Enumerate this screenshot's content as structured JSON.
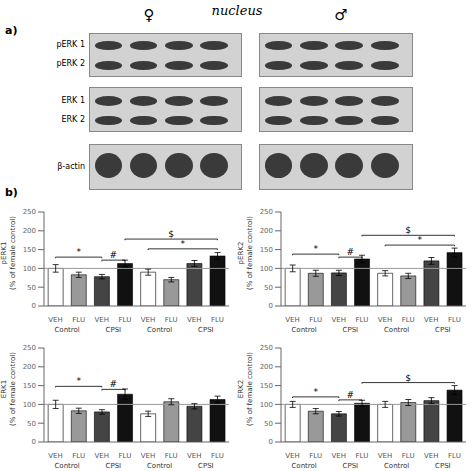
{
  "title": "nucleus",
  "annotations": {
    "panels": [
      "a)",
      "b)"
    ],
    "sexes": [
      "♀",
      "♂"
    ],
    "blot_rows": [
      "pERK 1",
      "pERK 2",
      "ERK 1",
      "ERK 2",
      "β-actin"
    ]
  },
  "chart_data": [
    {
      "type": "bar",
      "ylabel": "pERK1\n(% of female control)",
      "categories": [
        "VEH",
        "FLU",
        "VEH",
        "FLU",
        "VEH",
        "FLU",
        "VEH",
        "FLU"
      ],
      "group_labels": [
        "Control",
        "CPSI",
        "Control",
        "CPSI"
      ],
      "values": [
        100,
        83,
        78,
        113,
        90,
        70,
        113,
        133
      ],
      "errors": [
        10,
        7,
        6,
        9,
        8,
        6,
        8,
        9
      ],
      "colors": [
        "#FFFFFF",
        "#999999",
        "#444444",
        "#111111",
        "#FFFFFF",
        "#999999",
        "#444444",
        "#111111"
      ],
      "ylim": [
        0,
        250
      ],
      "yticks": [
        0,
        50,
        100,
        150,
        200,
        250
      ],
      "hline": 100,
      "grid": false,
      "brackets": [
        {
          "from": 0,
          "to": 2,
          "y": 130,
          "label": "*"
        },
        {
          "from": 2,
          "to": 3,
          "y": 122,
          "label": "#"
        },
        {
          "from": 4,
          "to": 7,
          "y": 152,
          "label": "*"
        },
        {
          "from": 3,
          "to": 7,
          "y": 178,
          "label": "$"
        }
      ]
    },
    {
      "type": "bar",
      "ylabel": "pERK2\n(% of female control)",
      "categories": [
        "VEH",
        "FLU",
        "VEH",
        "FLU",
        "VEH",
        "FLU",
        "VEH",
        "FLU"
      ],
      "group_labels": [
        "Control",
        "CPSI",
        "Control",
        "CPSI"
      ],
      "values": [
        100,
        87,
        88,
        125,
        87,
        80,
        120,
        142
      ],
      "errors": [
        9,
        8,
        7,
        10,
        7,
        7,
        9,
        12
      ],
      "colors": [
        "#FFFFFF",
        "#999999",
        "#444444",
        "#111111",
        "#FFFFFF",
        "#999999",
        "#444444",
        "#111111"
      ],
      "ylim": [
        0,
        250
      ],
      "yticks": [
        0,
        50,
        100,
        150,
        200,
        250
      ],
      "hline": 100,
      "grid": false,
      "brackets": [
        {
          "from": 0,
          "to": 2,
          "y": 138,
          "label": "*"
        },
        {
          "from": 2,
          "to": 3,
          "y": 130,
          "label": "#"
        },
        {
          "from": 4,
          "to": 7,
          "y": 162,
          "label": "*"
        },
        {
          "from": 3,
          "to": 7,
          "y": 188,
          "label": "$"
        }
      ]
    },
    {
      "type": "bar",
      "ylabel": "ERK1\n(% of female control)",
      "categories": [
        "VEH",
        "FLU",
        "VEH",
        "FLU",
        "VEH",
        "FLU",
        "VEH",
        "FLU"
      ],
      "group_labels": [
        "Control",
        "CPSI",
        "Control",
        "CPSI"
      ],
      "values": [
        100,
        83,
        80,
        127,
        75,
        107,
        95,
        113
      ],
      "errors": [
        11,
        7,
        6,
        14,
        7,
        8,
        7,
        9
      ],
      "colors": [
        "#FFFFFF",
        "#999999",
        "#444444",
        "#111111",
        "#FFFFFF",
        "#999999",
        "#444444",
        "#111111"
      ],
      "ylim": [
        0,
        250
      ],
      "yticks": [
        0,
        50,
        100,
        150,
        200,
        250
      ],
      "hline": 100,
      "grid": false,
      "brackets": [
        {
          "from": 0,
          "to": 2,
          "y": 148,
          "label": "*"
        },
        {
          "from": 2,
          "to": 3,
          "y": 140,
          "label": "#"
        }
      ]
    },
    {
      "type": "bar",
      "ylabel": "ERK2\n(% of female control)",
      "categories": [
        "VEH",
        "FLU",
        "VEH",
        "FLU",
        "VEH",
        "FLU",
        "VEH",
        "FLU"
      ],
      "group_labels": [
        "Control",
        "CPSI",
        "Control",
        "CPSI"
      ],
      "values": [
        100,
        82,
        75,
        103,
        100,
        105,
        110,
        138
      ],
      "errors": [
        8,
        7,
        6,
        8,
        8,
        8,
        8,
        12
      ],
      "colors": [
        "#FFFFFF",
        "#999999",
        "#444444",
        "#111111",
        "#FFFFFF",
        "#999999",
        "#444444",
        "#111111"
      ],
      "ylim": [
        0,
        250
      ],
      "yticks": [
        0,
        50,
        100,
        150,
        200,
        250
      ],
      "hline": 100,
      "grid": false,
      "brackets": [
        {
          "from": 0,
          "to": 2,
          "y": 120,
          "label": "*"
        },
        {
          "from": 2,
          "to": 3,
          "y": 112,
          "label": "#"
        },
        {
          "from": 3,
          "to": 7,
          "y": 158,
          "label": "$"
        }
      ]
    }
  ]
}
